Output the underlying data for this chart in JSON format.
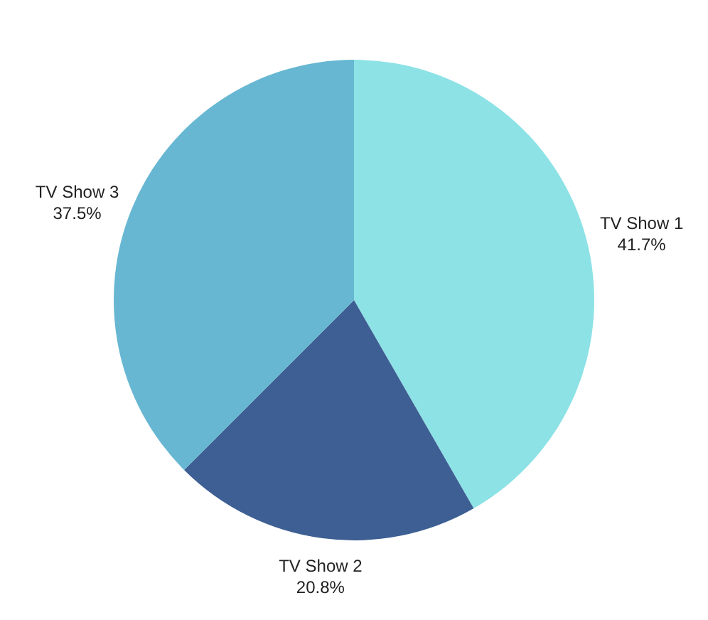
{
  "chart_data": {
    "type": "pie",
    "categories": [
      "TV Show 1",
      "TV Show 2",
      "TV Show 3"
    ],
    "values": [
      41.7,
      20.8,
      37.5
    ],
    "colors": [
      "#8de2e6",
      "#3d5f93",
      "#67b7d3"
    ],
    "value_labels": [
      "41.7%",
      "20.8%",
      "37.5%"
    ],
    "legend": false
  }
}
